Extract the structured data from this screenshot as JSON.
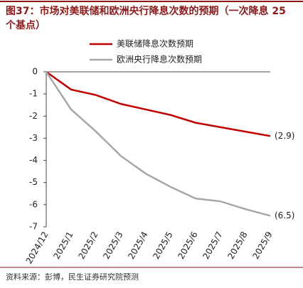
{
  "chart_data": {
    "type": "line",
    "title": "图37：市场对美联储和欧洲央行降息次数的预期（一次降息 25 个基点）",
    "source": "资料来源：彭博，民生证券研究院预测",
    "categories": [
      "2024/12",
      "2025/1",
      "2025/2",
      "2025/3",
      "2025/4",
      "2025/5",
      "2025/6",
      "2025/7",
      "2025/8",
      "2025/9"
    ],
    "series": [
      {
        "name": "美联储降息次数预期",
        "color": "#c00000",
        "values": [
          0,
          -0.8,
          -1.05,
          -1.45,
          -1.7,
          -1.95,
          -2.3,
          -2.5,
          -2.7,
          -2.9
        ],
        "value_labels": [
          null,
          null,
          null,
          null,
          null,
          null,
          null,
          null,
          null,
          "(2.9)"
        ]
      },
      {
        "name": "欧洲央行降息次数预期",
        "color": "#a6a6a6",
        "values": [
          0,
          -1.7,
          -2.7,
          -3.8,
          -4.6,
          -5.2,
          -5.72,
          -5.85,
          -6.2,
          -6.5
        ],
        "value_labels": [
          null,
          null,
          null,
          null,
          null,
          null,
          null,
          null,
          null,
          "(6.5)"
        ]
      }
    ],
    "ylim": [
      -7,
      0
    ],
    "yticks": [
      0,
      -1,
      -2,
      -3,
      -4,
      -5,
      -6,
      -7
    ]
  }
}
